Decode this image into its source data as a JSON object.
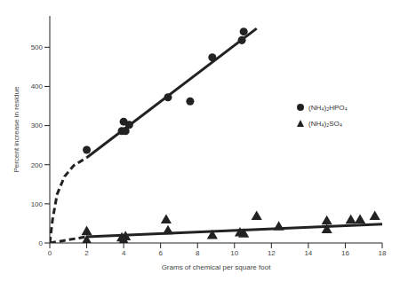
{
  "chart_data": {
    "type": "scatter",
    "x_label": "Grams of chemical per square foot",
    "y_label": "Percent increase in residue",
    "xlim": [
      0,
      18
    ],
    "xticks": [
      0,
      2,
      4,
      6,
      8,
      10,
      12,
      14,
      16,
      18
    ],
    "ylim": [
      0,
      580
    ],
    "yticks": [
      0,
      100,
      200,
      300,
      400,
      500
    ],
    "grid": false,
    "legend": "right",
    "series": [
      {
        "name": "(NH₄)₂HPO₄",
        "color": "#222222",
        "marker": "circle",
        "x": [
          2,
          3.9,
          4.1,
          4,
          4.3,
          6.4,
          7.6,
          8.8,
          10.4,
          10.5
        ],
        "values": [
          238,
          286,
          286,
          310,
          302,
          372,
          362,
          474,
          518,
          540
        ],
        "fit": [
          {
            "line_style": "dashed",
            "x": [
              0,
              0.15,
              0.4,
              0.8,
              1.3,
              2
            ],
            "values": [
              0,
              60,
              125,
              170,
              198,
              218
            ]
          },
          {
            "line_style": "solid",
            "x": [
              2,
              11.2
            ],
            "values": [
              218,
              548
            ]
          }
        ]
      },
      {
        "name": "(NH₄)₂SO₄",
        "color": "#222222",
        "marker": "triangle",
        "x": [
          2,
          2,
          3.9,
          4,
          4.1,
          6.3,
          6.4,
          8.8,
          10.3,
          10.5,
          11.2,
          12.4,
          15,
          15,
          16.3,
          16.8,
          17.6
        ],
        "values": [
          28,
          5,
          12,
          5,
          15,
          58,
          30,
          18,
          25,
          22,
          67,
          40,
          55,
          33,
          57,
          58,
          67
        ],
        "fit": [
          {
            "line_style": "dashed",
            "x": [
              0,
              2
            ],
            "values": [
              0,
              16
            ]
          },
          {
            "line_style": "solid",
            "x": [
              2,
              18
            ],
            "values": [
              16,
              48
            ]
          }
        ]
      }
    ]
  }
}
